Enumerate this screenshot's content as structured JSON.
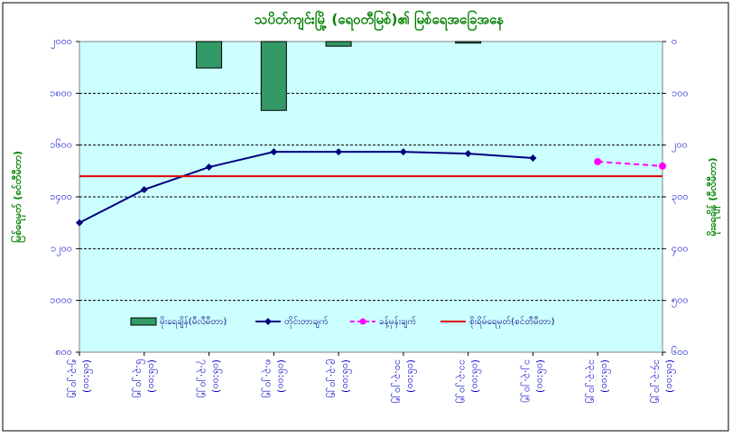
{
  "chart_data": {
    "type": "combo",
    "title": "သပိတ်ကျင်းမြို့ (ရေဝတီမြစ်)၏ မြစ်ရေအခြေအနေ",
    "y_label": "မြစ်ရေမှတ် (စင်တီမီတာ)",
    "y2_label": "မိုးရေချိန် (မီလီမီတာ)",
    "categories": [
      "၅.၃.၂၀၂၅",
      "၆.၃.၂၀၂၅",
      "၇.၃.၂၀၂၅",
      "၈.၃.၂၀၂၅",
      "၉.၃.၂၀၂၅",
      "၁၀.၃.၂၀၂၅",
      "၁၁.၃.၂၀၂၅",
      "၁၂.၃.၂၀၂၅",
      "၁၃.၃.၂၀၂၅",
      "၁၄.၃.၂၀၂၅"
    ],
    "time_label": "(၀၆:၀၀)",
    "ylim": [
      800,
      2000
    ],
    "yticks": [
      {
        "value": 800,
        "label": "၈၀၀"
      },
      {
        "value": 1000,
        "label": "၁၀၀၀"
      },
      {
        "value": 1200,
        "label": "၁၂၀၀"
      },
      {
        "value": 1400,
        "label": "၁၄၀၀"
      },
      {
        "value": 1600,
        "label": "၁၆၀၀"
      },
      {
        "value": 1800,
        "label": "၁၈၀၀"
      },
      {
        "value": 2000,
        "label": "၂၀၀၀"
      }
    ],
    "y2lim": [
      600,
      0
    ],
    "y2ticks": [
      {
        "value": 0,
        "label": "၀"
      },
      {
        "value": 100,
        "label": "၁၀၀"
      },
      {
        "value": 200,
        "label": "၂၀၀"
      },
      {
        "value": 300,
        "label": "၃၀၀"
      },
      {
        "value": 400,
        "label": "၄၀၀"
      },
      {
        "value": 500,
        "label": "၅၀၀"
      },
      {
        "value": 600,
        "label": "၆၀၀"
      }
    ],
    "grid": true,
    "series": [
      {
        "name": "မိုးရေချိန်(မီလီမီတာ)",
        "kind": "bar",
        "axis": "y2",
        "color": "#339966",
        "values": [
          0,
          0,
          51,
          133,
          9,
          0,
          3,
          0,
          null,
          null
        ]
      },
      {
        "name": "တိုင်းတာချက်",
        "kind": "line",
        "color": "#000080",
        "values": [
          1300,
          1428,
          1515,
          1574,
          1574,
          1574,
          1567,
          1550,
          null,
          null
        ]
      },
      {
        "name": "ခန့်မှန်းချက်",
        "kind": "dashed",
        "color": "#ff00ff",
        "values": [
          null,
          null,
          null,
          null,
          null,
          null,
          null,
          null,
          1536,
          1519
        ]
      },
      {
        "name": "စိုးရိမ်ရေမှတ်(စင်တီမီတာ)",
        "kind": "hline",
        "color": "#e00000",
        "value": 1480
      }
    ]
  }
}
